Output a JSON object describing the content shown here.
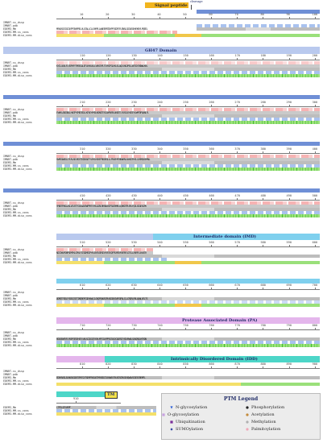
{
  "labels": {
    "signal_peptide": "Signal peptide",
    "cleavage": "cleavage",
    "gh47": "GH47 Domain",
    "imd": "Intermediate domain (IMD)",
    "pa": "Protease Associated Domain (PA)",
    "idd": "Intrinsically Disordered Domain (IDD)",
    "tm": "TM"
  },
  "row_labels": [
    "IMNRT-ss_dssp",
    "IMNRT-pdb",
    "EDEM3_Mm",
    "EDEM3-MM-ss_cons",
    "EDEM3-MM-diso_cons"
  ],
  "rulers": [
    [
      "10",
      "20",
      "30",
      "40",
      "50",
      "60",
      "70",
      "80",
      "90",
      "100"
    ],
    [
      "110",
      "120",
      "130",
      "140",
      "150",
      "160",
      "170",
      "180",
      "190",
      "200"
    ],
    [
      "210",
      "220",
      "230",
      "240",
      "250",
      "260",
      "270",
      "280",
      "290",
      "300"
    ],
    [
      "310",
      "320",
      "330",
      "340",
      "350",
      "360",
      "370",
      "380",
      "390",
      "400"
    ],
    [
      "410",
      "420",
      "430",
      "440",
      "450",
      "460",
      "470",
      "480",
      "490",
      "500"
    ],
    [
      "510",
      "520",
      "530",
      "540",
      "550",
      "560",
      "570",
      "580",
      "590",
      "600"
    ],
    [
      "610",
      "620",
      "630",
      "640",
      "650",
      "660",
      "670",
      "680",
      "690",
      "700"
    ],
    [
      "710",
      "720",
      "730",
      "740",
      "750",
      "760",
      "770",
      "780",
      "790",
      "800"
    ],
    [
      "810",
      "820",
      "830",
      "840",
      "850",
      "860",
      "870",
      "880",
      "890",
      "900"
    ],
    [
      "910"
    ]
  ],
  "sequences": [
    "MEKASSCSGCGVFPGRAPRELVLATALLCLLSHRPLLWAEERRTDVPFSSDFEFLENSLGGGVEGKHEKRYLPQEEL",
    "KYILVAVLFLYDPHFYTMEEGALEFLKHVLKLLVHKGYPLTSYHIPGLKKLSLAQLVHLDPELLWTSSYGKNWLKHL",
    "EVWRLADGGNLLHAGPYSMIEEDLLKFAEYHMDLKDNSTESSLWFNSRLANGETLFASSLEHGSEYLWMFDPQANLFL",
    "SWMSGWDSLLFLRLAELRDGTDIDSAETYLRYLKSKEFRDGRGLLLFRVEHPGHDWRRLAVKDGRYGLCASMQVAYMNL",
    "YMAEFRRGLASLVELRTTGGSAAVSWPPRTVTRLLDRLRRSNLHIPSAGMAMLLQHHDTPLERLFQSLSEAESGPK",
    "NDIIWVPGNPSEMFKLGPNLFIEGDMSGPYHLEKEVGRSEVVFEEVQFPEAPDYRVERFLGTSLLEKRPLLHVATR",
    "ADMDTFEDLFYDEGCSETIMQREPCGEHVWLCLGKQPGWVRIPLKDGSKGVRFQPALCLLCRDRLRRLAQWLVELTS",
    "HDEAEWTKFLFKEPGFDEHSFLVHLSCIDCQTVSHLMFEILRPPEGTAGVCADFDIYSEVRWALSAVQRQLHTRDN",
    "EDHHRASLEAHASKGGNTSPHTGVTSEMPPASAETMPAEDGTLRAWEVTRLNTSGRVGSHQWAVSGSEESREMPL",
    "LTPSLSEYVKPF"
  ],
  "legend": {
    "title": "PTM Legend",
    "items": [
      {
        "label": "N-glycosylation",
        "icon": "n-glyco-triangle",
        "color": "#2b5fd6"
      },
      {
        "label": "Phosphorylation",
        "icon": "phospho-dot",
        "color": "#222222"
      },
      {
        "label": "O-glycosylation",
        "icon": "o-glyco-square",
        "color": "#c8a2e0"
      },
      {
        "label": "Acetylation",
        "icon": "acetyl-dot",
        "color": "#c48b3c"
      },
      {
        "label": "Ubiquitination",
        "icon": "ubiq-square",
        "color": "#7a2e9a"
      },
      {
        "label": "Methylation",
        "icon": "methyl-dot",
        "color": "#b0b0b0"
      },
      {
        "label": "SUMOylation",
        "icon": "sumo-diamond",
        "color": "#2b3fa0"
      },
      {
        "label": "Palmitoylation",
        "icon": "palm-dot",
        "color": "#f0a8b8"
      }
    ]
  },
  "colors": {
    "domain_gh47": "#b8d0f2",
    "domain_imd": "#7fd0ee",
    "domain_pa": "#e4b6ec",
    "domain_idd": "#4dd6c8",
    "signal": "#f2b51e",
    "helix": "#f6b3b3",
    "strand": "#a9c2ee",
    "confident": "#3fbf2a"
  }
}
